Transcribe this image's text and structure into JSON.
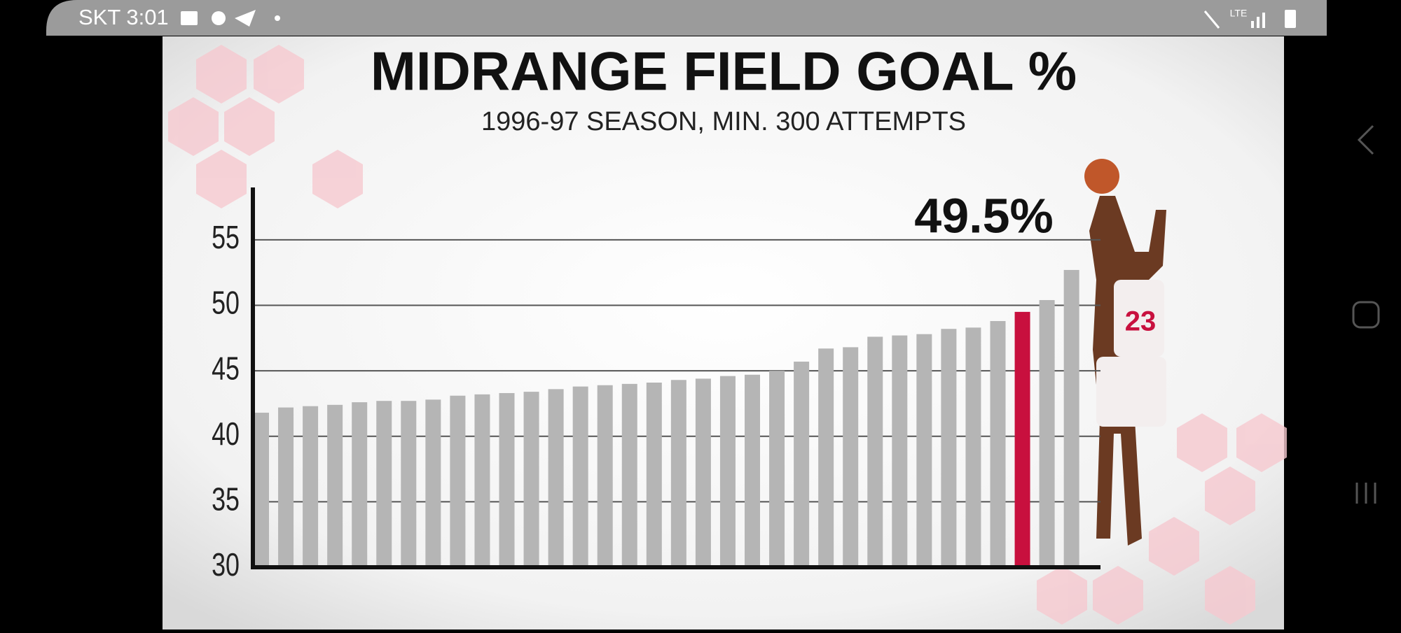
{
  "status_bar": {
    "carrier_time": "SKT 3:01",
    "network": "LTE"
  },
  "chart_data": {
    "type": "bar",
    "title": "MIDRANGE FIELD GOAL %",
    "subtitle": "1996-97 SEASON, MIN. 300 ATTEMPTS",
    "annotation": "49.5%",
    "categories": [
      null,
      null,
      null,
      null,
      null,
      null,
      null,
      null,
      null,
      null,
      null,
      null,
      null,
      null,
      null,
      null,
      null,
      null,
      null,
      null,
      null,
      null,
      null,
      null,
      null,
      null,
      null,
      null,
      null,
      null,
      null,
      null,
      null,
      null
    ],
    "values": [
      41.8,
      42.2,
      42.3,
      42.4,
      42.6,
      42.7,
      42.7,
      42.8,
      43.1,
      43.2,
      43.3,
      43.4,
      43.6,
      43.8,
      43.9,
      44.0,
      44.1,
      44.3,
      44.4,
      44.6,
      44.7,
      45.0,
      45.7,
      46.7,
      46.8,
      47.6,
      47.7,
      47.8,
      48.2,
      48.3,
      48.8,
      49.5,
      50.4,
      52.7
    ],
    "colors": [
      "#b5b5b5",
      "#b5b5b5",
      "#b5b5b5",
      "#b5b5b5",
      "#b5b5b5",
      "#b5b5b5",
      "#b5b5b5",
      "#b5b5b5",
      "#b5b5b5",
      "#b5b5b5",
      "#b5b5b5",
      "#b5b5b5",
      "#b5b5b5",
      "#b5b5b5",
      "#b5b5b5",
      "#b5b5b5",
      "#b5b5b5",
      "#b5b5b5",
      "#b5b5b5",
      "#b5b5b5",
      "#b5b5b5",
      "#b5b5b5",
      "#b5b5b5",
      "#b5b5b5",
      "#b5b5b5",
      "#b5b5b5",
      "#b5b5b5",
      "#b5b5b5",
      "#b5b5b5",
      "#b5b5b5",
      "#b5b5b5",
      "#c8103e",
      "#b5b5b5",
      "#b5b5b5"
    ],
    "ylim": [
      30,
      59
    ],
    "yticks": [
      30,
      35,
      40,
      45,
      50,
      55
    ],
    "grid": true
  }
}
